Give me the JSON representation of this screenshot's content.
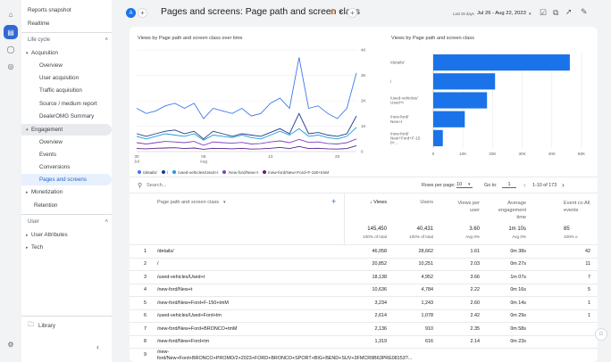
{
  "sidebar": {
    "top": [
      "Reports snapshot",
      "Realtime"
    ],
    "life_cycle": "Life cycle",
    "acquisition": "Acquisition",
    "acq_items": [
      "Overview",
      "User acquisition",
      "Traffic acquisition",
      "Source / medium report",
      "DealerOMG Summary"
    ],
    "engagement": "Engagement",
    "eng_items": [
      "Overview",
      "Events",
      "Conversions",
      "Pages and screens"
    ],
    "monetization": "Monetization",
    "retention": "Retention",
    "user": "User",
    "user_items": [
      "User Attributes",
      "Tech"
    ],
    "library": "Library"
  },
  "header": {
    "avatar": "A",
    "title": "Pages and screens: Page path and screen class",
    "date_prefix": "Last 28 days",
    "date_range": "Jul 26 - Aug 22, 2023"
  },
  "line_title": "Views by Page path and screen class over time",
  "bar_title": "Views by Page path and screen class",
  "colors": {
    "series1": "#3c78ef",
    "series2": "#1e3a8a",
    "series3": "#1a9bd8",
    "series4": "#7b3fc2",
    "series5": "#5a1f8a",
    "accent": "#1a73e8"
  },
  "chart_data": [
    {
      "type": "line",
      "x": [
        "Jul 30",
        "",
        "",
        "",
        "",
        "",
        "",
        "Aug 6",
        "",
        "",
        "",
        "",
        "",
        "",
        "Aug 13",
        "",
        "",
        "",
        "",
        "",
        "",
        "Aug 20",
        "",
        ""
      ],
      "x_ticks": [
        "30 Jul",
        "06 Aug",
        "13",
        "20"
      ],
      "y_ticks": [
        "0",
        "1K",
        "2K",
        "3K",
        "4K"
      ],
      "ylim": [
        0,
        4000
      ],
      "legend": [
        "/details/",
        "/",
        "/used-vehicles/Used+t",
        "/new-ford/New+t",
        "/new-ford/New+Ford+F-150+tmM"
      ],
      "series": [
        {
          "name": "/details/",
          "values": [
            1700,
            1500,
            1600,
            1800,
            1900,
            1700,
            1900,
            1300,
            1700,
            1600,
            1500,
            1700,
            1400,
            1500,
            1900,
            2100,
            1700,
            3700,
            1700,
            1800,
            1500,
            1300,
            1700,
            3100
          ]
        },
        {
          "name": "/",
          "values": [
            700,
            600,
            700,
            800,
            850,
            700,
            800,
            500,
            800,
            700,
            600,
            700,
            650,
            600,
            750,
            900,
            700,
            1500,
            700,
            750,
            650,
            600,
            700,
            1400
          ]
        },
        {
          "name": "/used-vehicles/Used+t",
          "values": [
            600,
            500,
            600,
            700,
            650,
            600,
            700,
            450,
            650,
            600,
            550,
            650,
            550,
            500,
            650,
            800,
            650,
            900,
            600,
            650,
            550,
            500,
            600,
            950
          ]
        },
        {
          "name": "/new-ford/New+t",
          "values": [
            350,
            300,
            350,
            400,
            380,
            350,
            400,
            250,
            380,
            350,
            330,
            360,
            300,
            320,
            380,
            420,
            350,
            480,
            360,
            380,
            320,
            300,
            350,
            500
          ]
        },
        {
          "name": "/new-ford/New+Ford+F-150+tmM",
          "values": [
            120,
            110,
            130,
            140,
            150,
            120,
            140,
            90,
            130,
            120,
            110,
            130,
            100,
            110,
            130,
            160,
            120,
            200,
            120,
            130,
            110,
            100,
            120,
            230
          ]
        }
      ]
    },
    {
      "type": "bar",
      "categories": [
        "/details/",
        "/",
        "/used-vehicles/Used+t",
        "/new-ford/New+t",
        "/new-ford/New+Ford+F-150+..."
      ],
      "values": [
        46058,
        20852,
        18138,
        10636,
        3234
      ],
      "x_ticks": [
        "0",
        "10K",
        "20K",
        "30K",
        "40K",
        "50K"
      ],
      "xlim": [
        0,
        50000
      ]
    }
  ],
  "table": {
    "search_placeholder": "Search...",
    "rows_per_page_label": "Rows per page:",
    "rows_per_page": "10",
    "goto_label": "Go to:",
    "goto_value": "1",
    "pagination": "1-10 of 173",
    "columns": [
      "Page path and screen class",
      "Views",
      "Users",
      "Views per user",
      "Average engagement time",
      "Event co All events"
    ],
    "totals": {
      "views": "145,450",
      "views_pct": "100% of total",
      "users": "40,431",
      "users_pct": "100% of total",
      "vpu": "3.60",
      "vpu_avg": "Avg 0%",
      "aet": "1m 10s",
      "aet_avg": "Avg 0%",
      "events": "85",
      "events_pct": "100% o"
    },
    "rows": [
      {
        "n": "1",
        "page": "/details/",
        "views": "46,058",
        "users": "28,662",
        "vpu": "1.61",
        "aet": "0m 38s",
        "events": "42"
      },
      {
        "n": "2",
        "page": "/",
        "views": "20,852",
        "users": "10,251",
        "vpu": "2.03",
        "aet": "0m 27s",
        "events": "11"
      },
      {
        "n": "3",
        "page": "/used-vehicles/Used+t",
        "views": "18,138",
        "users": "4,952",
        "vpu": "3.66",
        "aet": "1m 07s",
        "events": "7"
      },
      {
        "n": "4",
        "page": "/new-ford/New+t",
        "views": "10,636",
        "users": "4,784",
        "vpu": "2.22",
        "aet": "0m 16s",
        "events": "5"
      },
      {
        "n": "5",
        "page": "/new-ford/New+Ford+F-150+tmM",
        "views": "3,234",
        "users": "1,243",
        "vpu": "2.60",
        "aet": "0m 14s",
        "events": "1"
      },
      {
        "n": "6",
        "page": "/used-vehicles/Used+Ford+tm",
        "views": "2,614",
        "users": "1,078",
        "vpu": "2.42",
        "aet": "0m 29s",
        "events": "1"
      },
      {
        "n": "7",
        "page": "/new-ford/New+Ford+BRONCO+tmM",
        "views": "2,136",
        "users": "910",
        "vpu": "2.35",
        "aet": "0m 58s",
        "events": ""
      },
      {
        "n": "8",
        "page": "/new-ford/New+Ford+tm",
        "views": "1,319",
        "users": "616",
        "vpu": "2.14",
        "aet": "0m 23s",
        "events": ""
      },
      {
        "n": "9",
        "page": "/new-ford/New+Ford+BRONCO+PROMO/2+2023+FORD+BRONCO+SPORT+BIG+BEND+SUV+3FMCR9B63PRE08153?...",
        "views": "",
        "users": "",
        "vpu": "",
        "aet": "",
        "events": ""
      }
    ]
  }
}
